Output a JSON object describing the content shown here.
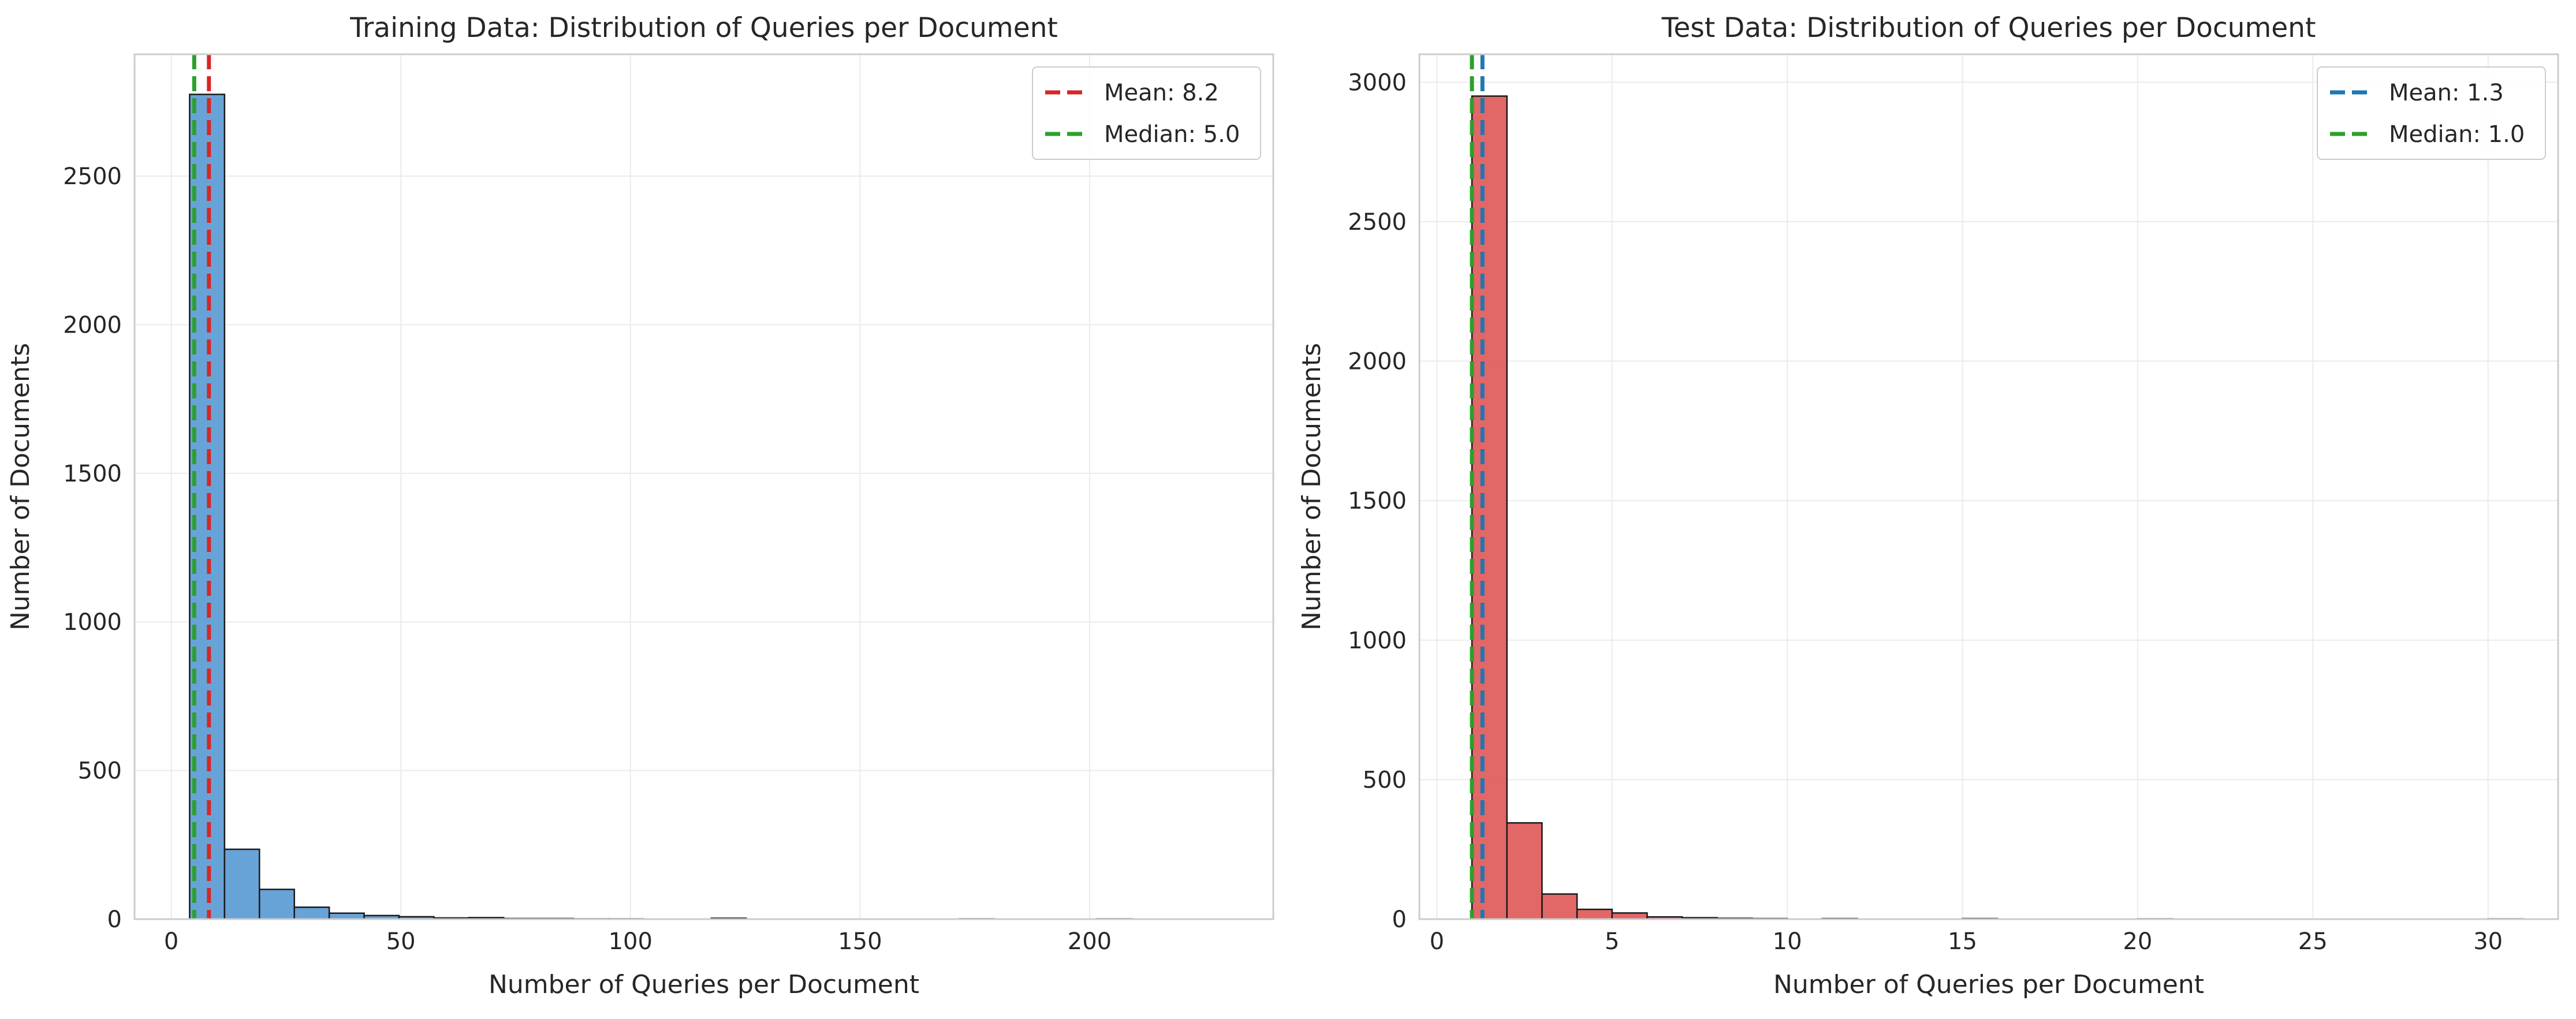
{
  "chart_data": [
    {
      "type": "bar",
      "title": "Training Data: Distribution of Queries per Document",
      "xlabel": "Number of Queries per Document",
      "ylabel": "Number of Documents",
      "xlim": [
        -8,
        240
      ],
      "ylim": [
        0,
        2910
      ],
      "xticks": [
        0,
        50,
        100,
        150,
        200
      ],
      "yticks": [
        0,
        500,
        1000,
        1500,
        2000,
        2500
      ],
      "grid": true,
      "legend_position": "top-right",
      "bar_color": "#5b9bd5",
      "bins": [
        {
          "x0": 4,
          "x1": 11.6,
          "value": 2775
        },
        {
          "x0": 11.6,
          "x1": 19.2,
          "value": 235
        },
        {
          "x0": 19.2,
          "x1": 26.8,
          "value": 100
        },
        {
          "x0": 26.8,
          "x1": 34.4,
          "value": 40
        },
        {
          "x0": 34.4,
          "x1": 42.0,
          "value": 20
        },
        {
          "x0": 42.0,
          "x1": 49.6,
          "value": 12
        },
        {
          "x0": 49.6,
          "x1": 57.2,
          "value": 8
        },
        {
          "x0": 57.2,
          "x1": 64.8,
          "value": 4
        },
        {
          "x0": 64.8,
          "x1": 72.4,
          "value": 5
        },
        {
          "x0": 72.4,
          "x1": 80.0,
          "value": 2
        },
        {
          "x0": 80.0,
          "x1": 87.6,
          "value": 2
        },
        {
          "x0": 87.6,
          "x1": 95.2,
          "value": 1
        },
        {
          "x0": 95.2,
          "x1": 102.8,
          "value": 1
        },
        {
          "x0": 117.6,
          "x1": 125.2,
          "value": 3
        },
        {
          "x0": 171.6,
          "x1": 179.2,
          "value": 1
        },
        {
          "x0": 201.6,
          "x1": 209.2,
          "value": 1
        }
      ],
      "lines": [
        {
          "label": "Mean: 8.2",
          "x": 8.2,
          "color": "#d62728"
        },
        {
          "label": "Median: 5.0",
          "x": 5.0,
          "color": "#2ca02c"
        }
      ]
    },
    {
      "type": "bar",
      "title": "Test Data: Distribution of Queries per Document",
      "xlabel": "Number of Queries per Document",
      "ylabel": "Number of Documents",
      "xlim": [
        -0.5,
        32
      ],
      "ylim": [
        0,
        3100
      ],
      "xticks": [
        0,
        5,
        10,
        15,
        20,
        25,
        30
      ],
      "yticks": [
        0,
        500,
        1000,
        1500,
        2000,
        2500,
        3000
      ],
      "grid": true,
      "legend_position": "top-right",
      "bar_color": "#e05a5a",
      "bins": [
        {
          "x0": 1,
          "x1": 2,
          "value": 2950
        },
        {
          "x0": 2,
          "x1": 3,
          "value": 345
        },
        {
          "x0": 3,
          "x1": 4,
          "value": 90
        },
        {
          "x0": 4,
          "x1": 5,
          "value": 35
        },
        {
          "x0": 5,
          "x1": 6,
          "value": 22
        },
        {
          "x0": 6,
          "x1": 7,
          "value": 8
        },
        {
          "x0": 7,
          "x1": 8,
          "value": 5
        },
        {
          "x0": 8,
          "x1": 9,
          "value": 3
        },
        {
          "x0": 9,
          "x1": 10,
          "value": 2
        },
        {
          "x0": 11,
          "x1": 12,
          "value": 2
        },
        {
          "x0": 15,
          "x1": 16,
          "value": 2
        },
        {
          "x0": 20,
          "x1": 21,
          "value": 1
        },
        {
          "x0": 30,
          "x1": 31,
          "value": 1
        }
      ],
      "lines": [
        {
          "label": "Mean: 1.3",
          "x": 1.3,
          "color": "#1f77b4"
        },
        {
          "label": "Median: 1.0",
          "x": 1.0,
          "color": "#2ca02c"
        }
      ]
    }
  ]
}
